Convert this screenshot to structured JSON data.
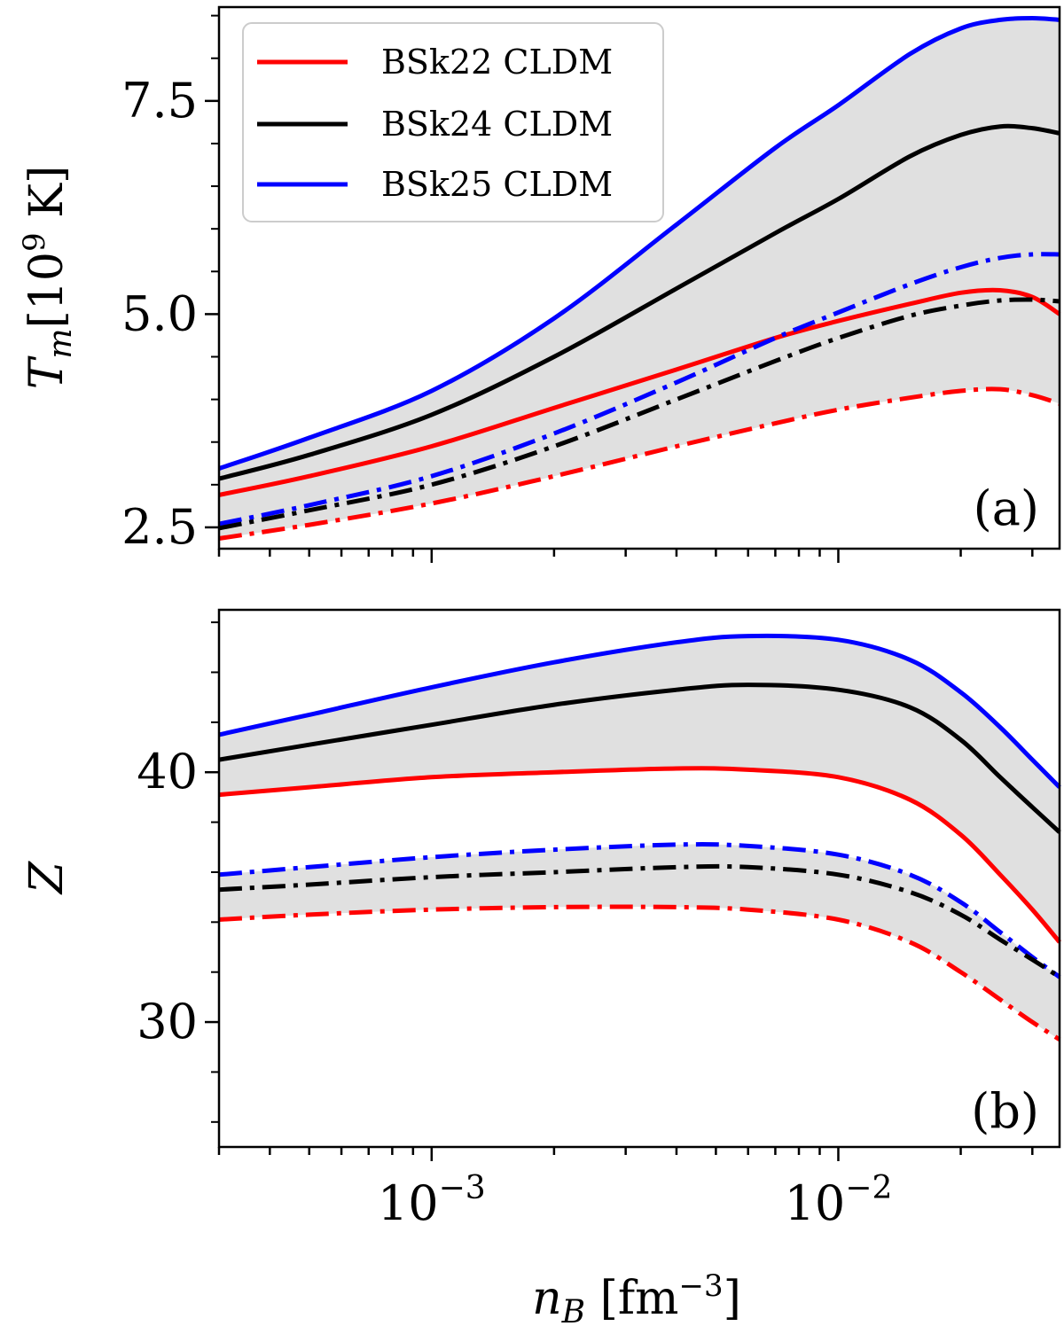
{
  "chart_data": [
    {
      "type": "line",
      "panel_label": "(a)",
      "ylabel": "T_m [10^9 K]",
      "ylabel_parts": {
        "symbol": "T",
        "subscript": "m",
        "open": "[10",
        "exponent": "9",
        "close": " K]"
      },
      "x_scale": "log",
      "xlim": [
        0.0003,
        0.035
      ],
      "ylim": [
        2.25,
        8.6
      ],
      "yticks": [
        2.5,
        5.0,
        7.5
      ],
      "ytick_labels": [
        "2.5",
        "5.0",
        "7.5"
      ],
      "x_major_ticks": [
        0.001,
        0.01
      ],
      "band_fill": "#e0e0e0",
      "band_between": [
        [
          "BSk25 CLDM",
          "solid"
        ],
        [
          "BSk22 CLDM",
          "dashdot"
        ]
      ],
      "legend": {
        "location": "top-left",
        "entries": [
          {
            "label": "BSk22 CLDM",
            "color": "#ff0000"
          },
          {
            "label": "BSk24 CLDM",
            "color": "#000000"
          },
          {
            "label": "BSk25 CLDM",
            "color": "#0000ff"
          }
        ]
      },
      "x": [
        0.0003,
        0.0005,
        0.001,
        0.002,
        0.004,
        0.007,
        0.01,
        0.015,
        0.02,
        0.025,
        0.03,
        0.035
      ],
      "series": [
        {
          "name": "BSk25 CLDM",
          "style": "solid",
          "color": "#0000ff",
          "values": [
            3.19,
            3.55,
            4.1,
            4.95,
            6.05,
            6.95,
            7.45,
            8.05,
            8.35,
            8.45,
            8.47,
            8.45
          ]
        },
        {
          "name": "BSk24 CLDM",
          "style": "solid",
          "color": "#000000",
          "values": [
            3.07,
            3.35,
            3.82,
            4.5,
            5.3,
            5.95,
            6.35,
            6.85,
            7.1,
            7.2,
            7.18,
            7.12
          ]
        },
        {
          "name": "BSk22 CLDM",
          "style": "solid",
          "color": "#ff0000",
          "values": [
            2.88,
            3.1,
            3.45,
            3.9,
            4.35,
            4.72,
            4.92,
            5.12,
            5.25,
            5.28,
            5.2,
            5.0
          ]
        },
        {
          "name": "BSk25 CLDM",
          "style": "dashdot",
          "color": "#0000ff",
          "values": [
            2.54,
            2.76,
            3.1,
            3.6,
            4.2,
            4.72,
            5.02,
            5.35,
            5.55,
            5.66,
            5.7,
            5.7
          ]
        },
        {
          "name": "BSk24 CLDM",
          "style": "dashdot",
          "color": "#000000",
          "values": [
            2.49,
            2.7,
            3.0,
            3.45,
            4.0,
            4.45,
            4.72,
            4.98,
            5.1,
            5.16,
            5.17,
            5.15
          ]
        },
        {
          "name": "BSk22 CLDM",
          "style": "dashdot",
          "color": "#ff0000",
          "values": [
            2.37,
            2.53,
            2.78,
            3.1,
            3.45,
            3.72,
            3.88,
            4.02,
            4.1,
            4.12,
            4.05,
            3.95
          ]
        }
      ]
    },
    {
      "type": "line",
      "panel_label": "(b)",
      "ylabel": "Z",
      "x_scale": "log",
      "xlabel": "n_B [fm^-3]",
      "xlabel_parts": {
        "symbol": "n",
        "subscript": "B",
        "open": " [fm",
        "exponent": "−3",
        "close": "]"
      },
      "xlim": [
        0.0003,
        0.035
      ],
      "ylim": [
        25,
        46.5
      ],
      "yticks": [
        30,
        40
      ],
      "ytick_labels": [
        "30",
        "40"
      ],
      "x_major_ticks": [
        0.001,
        0.01
      ],
      "xtick_labels": [
        {
          "base": "10",
          "exp": "−3"
        },
        {
          "base": "10",
          "exp": "−2"
        }
      ],
      "band_fill": "#e0e0e0",
      "band_between": [
        [
          "BSk25 CLDM",
          "solid"
        ],
        [
          "BSk22 CLDM",
          "solid"
        ]
      ],
      "band2_between": [
        [
          "BSk25 CLDM",
          "dashdot"
        ],
        [
          "BSk22 CLDM",
          "dashdot"
        ]
      ],
      "x": [
        0.0003,
        0.0005,
        0.001,
        0.002,
        0.004,
        0.006,
        0.01,
        0.015,
        0.02,
        0.025,
        0.03,
        0.035
      ],
      "series": [
        {
          "name": "BSk25 CLDM",
          "style": "solid",
          "color": "#0000ff",
          "values": [
            41.5,
            42.3,
            43.4,
            44.4,
            45.2,
            45.45,
            45.3,
            44.5,
            43.2,
            41.8,
            40.5,
            39.4
          ]
        },
        {
          "name": "BSk24 CLDM",
          "style": "solid",
          "color": "#000000",
          "values": [
            40.5,
            41.1,
            41.9,
            42.7,
            43.3,
            43.5,
            43.3,
            42.6,
            41.3,
            39.8,
            38.6,
            37.6
          ]
        },
        {
          "name": "BSk22 CLDM",
          "style": "solid",
          "color": "#ff0000",
          "values": [
            39.1,
            39.4,
            39.8,
            40.0,
            40.15,
            40.1,
            39.8,
            38.9,
            37.5,
            35.9,
            34.5,
            33.2
          ]
        },
        {
          "name": "BSk25 CLDM",
          "style": "dashdot",
          "color": "#0000ff",
          "values": [
            35.9,
            36.2,
            36.6,
            36.9,
            37.1,
            37.05,
            36.7,
            35.9,
            34.8,
            33.6,
            32.6,
            31.8
          ]
        },
        {
          "name": "BSk24 CLDM",
          "style": "dashdot",
          "color": "#000000",
          "values": [
            35.3,
            35.5,
            35.8,
            36.0,
            36.2,
            36.2,
            35.9,
            35.2,
            34.3,
            33.3,
            32.5,
            31.8
          ]
        },
        {
          "name": "BSk22 CLDM",
          "style": "dashdot",
          "color": "#ff0000",
          "values": [
            34.1,
            34.3,
            34.5,
            34.6,
            34.6,
            34.5,
            34.1,
            33.2,
            32.0,
            30.9,
            30.0,
            29.3
          ]
        }
      ]
    }
  ]
}
